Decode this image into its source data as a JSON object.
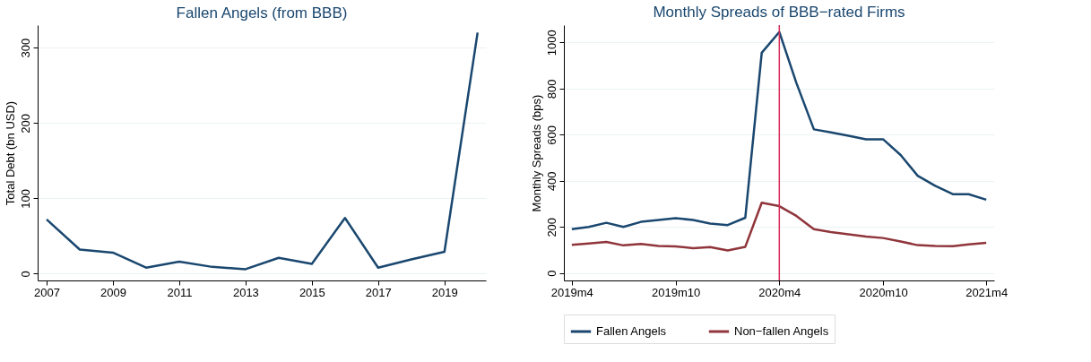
{
  "chart_data": [
    {
      "type": "line",
      "title": "Fallen Angels (from BBB)",
      "ylabel": "Total Debt (bn USD)",
      "x": [
        2007,
        2008,
        2009,
        2010,
        2011,
        2012,
        2013,
        2014,
        2015,
        2016,
        2017,
        2018,
        2019,
        2020
      ],
      "series": [
        {
          "color": "#1a476f",
          "values": [
            72,
            32,
            28,
            8,
            16,
            9,
            6,
            21,
            13,
            74,
            8,
            19,
            29,
            320
          ]
        }
      ],
      "xlim": [
        2006.73,
        2020.25
      ],
      "xticks": [
        2007,
        2009,
        2011,
        2013,
        2015,
        2017,
        2019
      ],
      "ylim": [
        -9,
        330
      ],
      "yticks": [
        0,
        100,
        200,
        300
      ],
      "grid": "y",
      "legend": false,
      "marker": "none",
      "line_style": "solid"
    },
    {
      "type": "line",
      "title": "Monthly Spreads of BBB−rated Firms",
      "ylabel": "Monthly Spreads (bps)",
      "x": [
        "2019-04",
        "2019-05",
        "2019-06",
        "2019-07",
        "2019-08",
        "2019-09",
        "2019-10",
        "2019-11",
        "2019-12",
        "2020-01",
        "2020-02",
        "2020-03",
        "2020-04",
        "2020-05",
        "2020-06",
        "2020-07",
        "2020-08",
        "2020-09",
        "2020-10",
        "2020-11",
        "2020-12",
        "2021-01",
        "2021-02",
        "2021-03",
        "2021-04"
      ],
      "series": [
        {
          "name": "Fallen Angels",
          "color": "#1a476f",
          "values": [
            190,
            200,
            218,
            200,
            222,
            230,
            238,
            230,
            215,
            208,
            240,
            955,
            1045,
            825,
            623,
            610,
            595,
            580,
            580,
            512,
            422,
            378,
            342,
            342,
            318
          ]
        },
        {
          "name": "Non−fallen Angels",
          "color": "#90353b",
          "values": [
            122,
            128,
            135,
            120,
            126,
            118,
            116,
            108,
            113,
            98,
            114,
            305,
            290,
            248,
            190,
            178,
            168,
            158,
            152,
            137,
            121,
            118,
            117,
            124,
            131
          ]
        }
      ],
      "xlim": [
        "2019-03-18",
        "2021-04-15"
      ],
      "xticks": [
        {
          "value": "2019-04",
          "label": "2019m4"
        },
        {
          "value": "2019-10",
          "label": "2019m10"
        },
        {
          "value": "2020-04",
          "label": "2020m4"
        },
        {
          "value": "2020-10",
          "label": "2020m10"
        },
        {
          "value": "2021-04",
          "label": "2021m4"
        }
      ],
      "ylim": [
        -32,
        1075
      ],
      "yticks": [
        0,
        200,
        400,
        600,
        800,
        1000
      ],
      "ref_lines": [
        {
          "axis": "x",
          "value": "2020-04",
          "color": "#d62d5a"
        }
      ],
      "grid": "y",
      "legend": "bottom",
      "marker": "none",
      "line_style": "solid"
    }
  ]
}
